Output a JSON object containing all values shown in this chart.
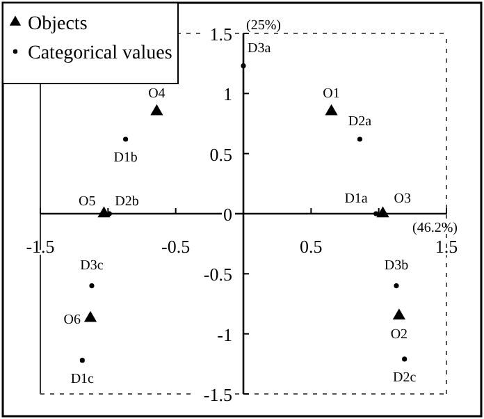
{
  "chart_data": {
    "type": "scatter",
    "xlabel": "(46.2%)",
    "ylabel": "(25%)",
    "xlim": [
      -1.5,
      1.5
    ],
    "ylim": [
      -1.5,
      1.5
    ],
    "xticks": [
      -1.5,
      {
        "value": -1,
        "label": null
      },
      -0.5,
      {
        "value": 0,
        "label": null
      },
      0.5,
      {
        "value": 1,
        "label": null
      },
      1.5
    ],
    "yticks": [
      -1.5,
      -1,
      -0.5,
      0,
      0.5,
      1,
      1.5
    ],
    "grid": false,
    "legend": "top left",
    "series": [
      {
        "name": "Objects",
        "color": "#000000",
        "marker": "triangle",
        "x": [
          0.65,
          1.15,
          1.03,
          -0.64,
          -1.03,
          -1.13
        ],
        "values": [
          0.85,
          -0.85,
          0,
          0.85,
          0,
          -0.87
        ]
      },
      {
        "name": "Categorical values",
        "color": "#000000",
        "marker": "circle",
        "x": [
          0.98,
          -0.87,
          -1.19,
          0.86,
          -0.99,
          1.19,
          0,
          1.13,
          -1.12
        ],
        "values": [
          0,
          0.62,
          -1.22,
          0.62,
          0,
          -1.21,
          1.23,
          -0.6,
          -0.6
        ]
      }
    ],
    "annotations": [
      {
        "text": "O1",
        "x": 0.65,
        "y": 0.85
      },
      {
        "text": "O2",
        "x": 1.15,
        "y": -0.85
      },
      {
        "text": "O3",
        "x": 1.03,
        "y": 0
      },
      {
        "text": "O4",
        "x": -0.64,
        "y": 0.85
      },
      {
        "text": "O5",
        "x": -1.03,
        "y": 0
      },
      {
        "text": "O6",
        "x": -1.13,
        "y": -0.87
      },
      {
        "text": "D1a",
        "x": 0.98,
        "y": 0
      },
      {
        "text": "D1b",
        "x": -0.87,
        "y": 0.62
      },
      {
        "text": "D1c",
        "x": -1.19,
        "y": -1.22
      },
      {
        "text": "D2a",
        "x": 0.86,
        "y": 0.62
      },
      {
        "text": "D2b",
        "x": -0.99,
        "y": 0
      },
      {
        "text": "D2c",
        "x": 1.19,
        "y": -1.21
      },
      {
        "text": "D3a",
        "x": 0,
        "y": 1.23
      },
      {
        "text": "D3b",
        "x": 1.13,
        "y": -0.6
      },
      {
        "text": "D3c",
        "x": -1.12,
        "y": -0.6
      }
    ]
  }
}
